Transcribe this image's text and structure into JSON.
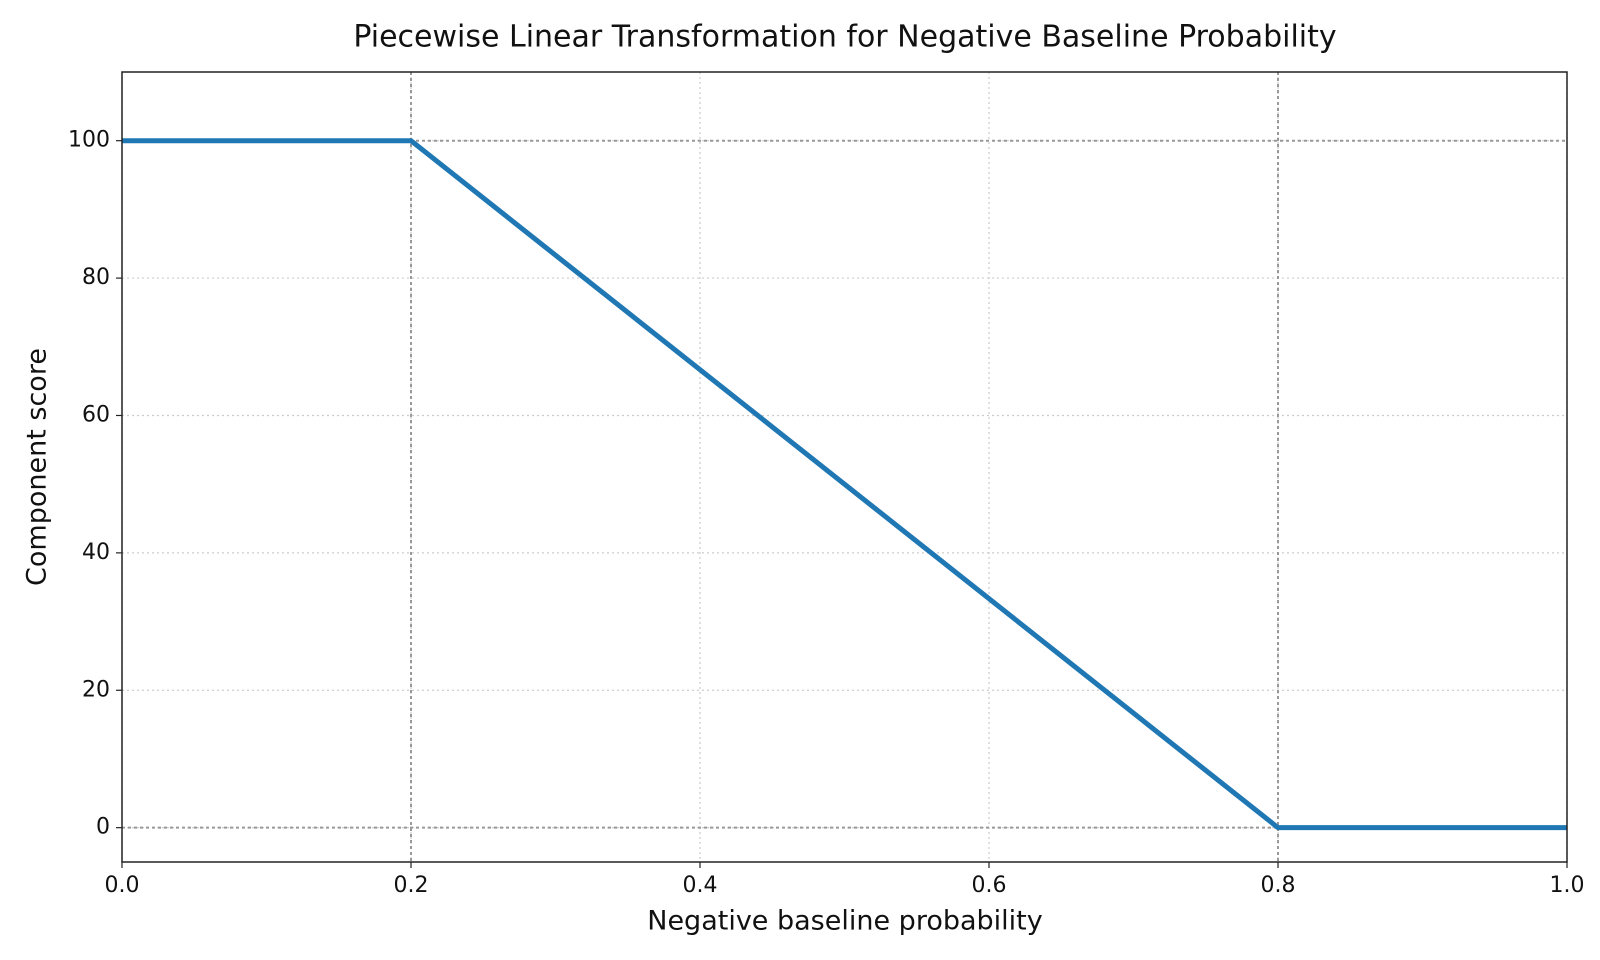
{
  "chart_data": {
    "type": "line",
    "title": "Piecewise Linear Transformation for Negative Baseline Probability",
    "x_label": "Negative baseline probability",
    "y_label": "Component score",
    "x": [
      0,
      0.2,
      0.8,
      1
    ],
    "values": [
      100,
      100,
      0,
      0
    ],
    "color": "#1f77b4",
    "xlim": [
      0,
      1
    ],
    "ylim": [
      -5,
      110
    ],
    "xticks": [
      {
        "value": 0,
        "label": "0.0"
      },
      0.2,
      0.4,
      0.6,
      0.8,
      {
        "value": 1,
        "label": "1.0"
      }
    ],
    "yticks": [
      0,
      20,
      40,
      60,
      80,
      100
    ],
    "grid": true,
    "reference_lines": {
      "x": [
        0.2,
        0.8
      ],
      "y": [
        0,
        100
      ]
    }
  }
}
